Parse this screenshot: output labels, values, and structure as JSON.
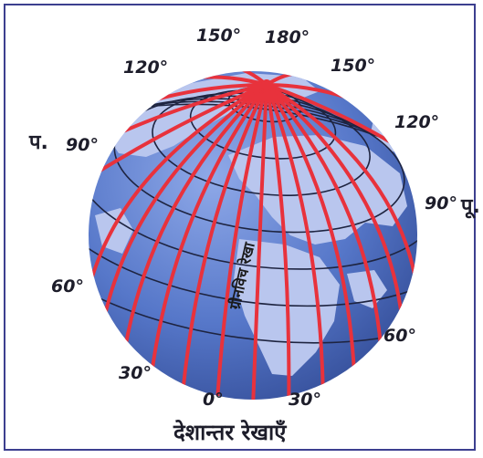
{
  "caption": "देशान्तर रेखाएँ",
  "prime_meridian_label": "ग्रीनविच रेखा",
  "direction_labels": {
    "west": "प.",
    "east": "पू."
  },
  "degree_labels": {
    "w150": "150°",
    "d180": "180°",
    "e150": "150°",
    "w120": "120°",
    "e120": "120°",
    "w90": "90°",
    "e90": "90°",
    "w60": "60°",
    "e60": "60°",
    "w30": "30°",
    "zero": "0°",
    "e30": "30°"
  },
  "colors": {
    "frame": "#3c3f8f",
    "ocean": "#5b7fcf",
    "land": "#b9c6ee",
    "meridian": "#e8323c",
    "latitude": "#1e2440"
  }
}
